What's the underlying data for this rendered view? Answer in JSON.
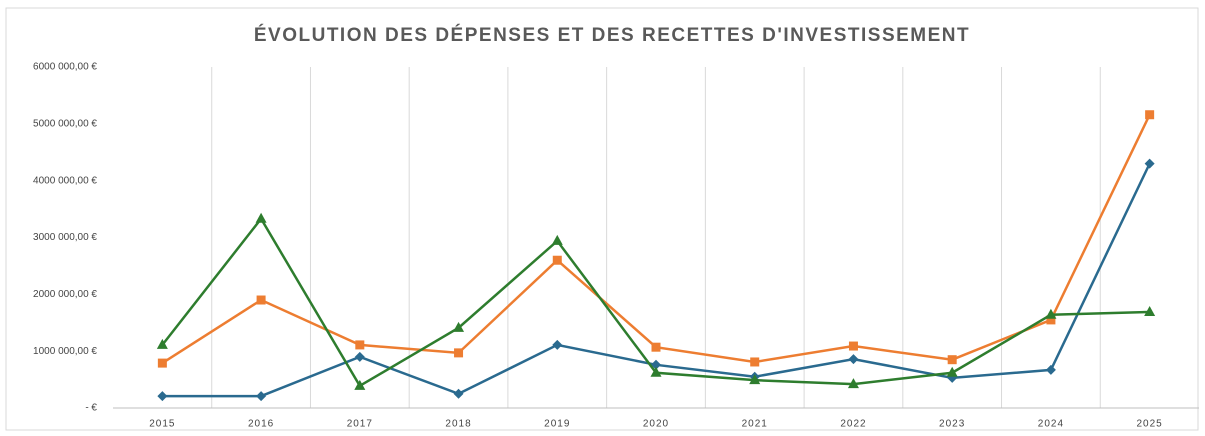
{
  "chart_data": {
    "type": "line",
    "title": "ÉVOLUTION DES DÉPENSES ET DES RECETTES D'INVESTISSEMENT",
    "categories": [
      "2015",
      "2016",
      "2017",
      "2018",
      "2019",
      "2020",
      "2021",
      "2022",
      "2023",
      "2024",
      "2025"
    ],
    "series": [
      {
        "color": "#2a6a8f",
        "marker": "diamond",
        "values": [
          210000,
          210000,
          900000,
          250000,
          1110000,
          760000,
          550000,
          860000,
          530000,
          670000,
          4300000
        ]
      },
      {
        "color": "#ed7d31",
        "marker": "square",
        "values": [
          790000,
          1900000,
          1110000,
          970000,
          2600000,
          1070000,
          810000,
          1090000,
          850000,
          1550000,
          5160000
        ]
      },
      {
        "color": "#2e7d2e",
        "marker": "triangle",
        "values": [
          1110000,
          3330000,
          390000,
          1410000,
          2940000,
          620000,
          490000,
          420000,
          620000,
          1640000,
          1690000
        ]
      }
    ],
    "ylim": [
      0,
      6000000
    ],
    "yticks": [
      {
        "value": 0,
        "label": "- €"
      },
      {
        "value": 1000000,
        "label": "1000 000,00 €"
      },
      {
        "value": 2000000,
        "label": "2000 000,00 €"
      },
      {
        "value": 3000000,
        "label": "3000 000,00 €"
      },
      {
        "value": 4000000,
        "label": "4000 000,00 €"
      },
      {
        "value": 5000000,
        "label": "5000 000,00 €"
      },
      {
        "value": 6000000,
        "label": "6000 000,00 €"
      }
    ],
    "grid": true
  }
}
